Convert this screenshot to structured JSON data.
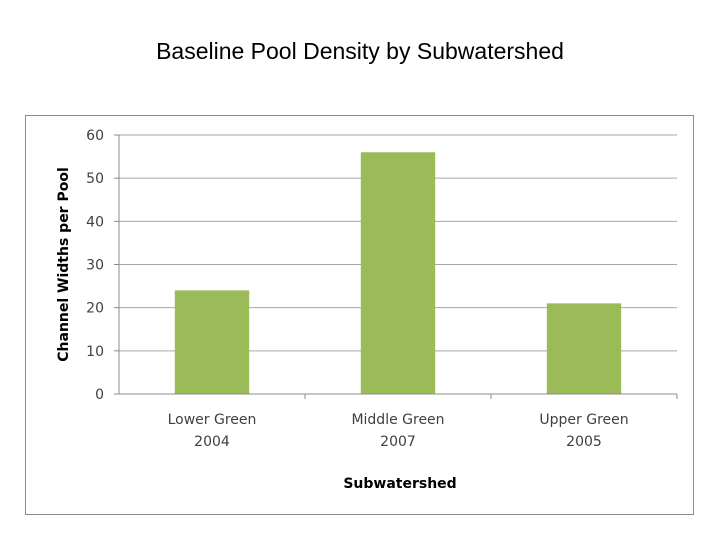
{
  "page": {
    "title": "Baseline Pool Density by Subwatershed"
  },
  "chart_data": {
    "type": "bar",
    "title": "Baseline Pool Density by Subwatershed",
    "categories": [
      [
        "Lower Green",
        "2004"
      ],
      [
        "Middle Green",
        "2007"
      ],
      [
        "Upper Green",
        "2005"
      ]
    ],
    "values": [
      24,
      56,
      21
    ],
    "xlabel": "Subwatershed",
    "ylabel": "Channel Widths per Pool",
    "ylim": [
      0,
      60
    ],
    "yticks": [
      0,
      10,
      20,
      30,
      40,
      50,
      60
    ],
    "grid": true,
    "legend": "none",
    "colors": {
      "bar": "#9bbb59",
      "grid": "#a6a6a6",
      "axis": "#8c8c8c"
    }
  }
}
